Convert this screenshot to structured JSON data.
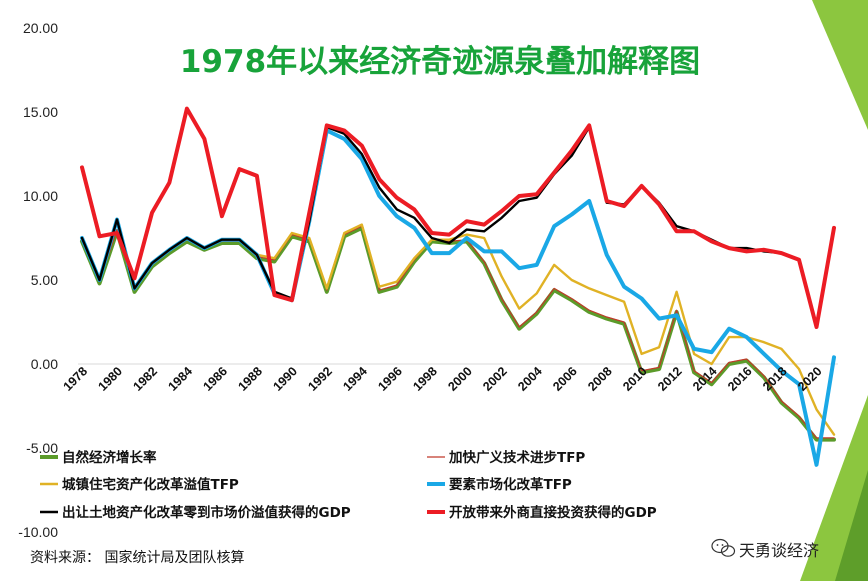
{
  "chart_data": {
    "type": "line",
    "title": "1978年以来经济奇迹源泉叠加解释图",
    "xlabel": "",
    "ylabel": "",
    "ylim": [
      -10,
      20
    ],
    "yticks": [
      "20.00",
      "15.00",
      "10.00",
      "5.00",
      "0.00",
      "-5.00",
      "-10.00"
    ],
    "ytick_values": [
      20,
      15,
      10,
      5,
      0,
      -5,
      -10
    ],
    "x": [
      1978,
      1979,
      1980,
      1981,
      1982,
      1983,
      1984,
      1985,
      1986,
      1987,
      1988,
      1989,
      1990,
      1991,
      1992,
      1993,
      1994,
      1995,
      1996,
      1997,
      1998,
      1999,
      2000,
      2001,
      2002,
      2003,
      2004,
      2005,
      2006,
      2007,
      2008,
      2009,
      2010,
      2011,
      2012,
      2013,
      2014,
      2015,
      2016,
      2017,
      2018,
      2019,
      2020,
      2021
    ],
    "xtick_labels": [
      "1978",
      "1980",
      "1982",
      "1984",
      "1986",
      "1988",
      "1990",
      "1992",
      "1994",
      "1996",
      "1998",
      "2000",
      "2002",
      "2004",
      "2006",
      "2008",
      "2010",
      "2012",
      "2014",
      "2016",
      "2018",
      "2020"
    ],
    "legend_position": "bottom",
    "series": [
      {
        "name": "自然经济增长率",
        "color": "#5b9b2a",
        "width": 4,
        "values": [
          7.3,
          4.8,
          7.9,
          4.3,
          5.8,
          6.6,
          7.3,
          6.8,
          7.2,
          7.2,
          6.3,
          6.1,
          7.6,
          7.3,
          4.3,
          7.6,
          8.1,
          4.3,
          4.6,
          6.1,
          7.3,
          7.2,
          7.3,
          6.0,
          3.8,
          2.1,
          3.0,
          4.4,
          3.8,
          3.1,
          2.7,
          2.4,
          -0.5,
          -0.3,
          3.1,
          -0.5,
          -1.2,
          0.0,
          0.2,
          -0.8,
          -2.3,
          -3.2,
          -4.5,
          -4.5
        ]
      },
      {
        "name": "加快广义技术进步TFP",
        "color": "#c0392b",
        "width": 1.2,
        "values": [
          7.4,
          4.9,
          8.0,
          4.4,
          5.9,
          6.7,
          7.4,
          6.9,
          7.3,
          7.3,
          6.4,
          6.2,
          7.7,
          7.4,
          4.4,
          7.7,
          8.2,
          4.4,
          4.7,
          6.2,
          7.4,
          7.3,
          7.4,
          6.1,
          3.9,
          2.2,
          3.1,
          4.5,
          3.9,
          3.2,
          2.8,
          2.5,
          -0.4,
          -0.2,
          3.2,
          -0.4,
          -1.1,
          0.1,
          0.3,
          -0.7,
          -2.2,
          -3.1,
          -4.4,
          -4.4
        ]
      },
      {
        "name": "城镇住宅资产化改革溢值TFP",
        "color": "#e0b225",
        "width": 2.4,
        "values": [
          7.5,
          5.0,
          8.6,
          4.5,
          6.0,
          6.8,
          7.5,
          6.9,
          7.4,
          7.4,
          6.5,
          6.3,
          7.8,
          7.5,
          4.5,
          7.8,
          8.3,
          4.6,
          4.9,
          6.3,
          7.4,
          7.4,
          7.7,
          7.5,
          5.2,
          3.3,
          4.2,
          5.9,
          5.0,
          4.5,
          4.1,
          3.7,
          0.6,
          1.0,
          4.3,
          0.6,
          0.0,
          1.6,
          1.6,
          1.3,
          0.9,
          -0.3,
          -2.7,
          -4.2
        ]
      },
      {
        "name": "要素市场化改革TFP",
        "color": "#1aa8e6",
        "width": 4,
        "values": [
          7.5,
          5.0,
          8.6,
          4.5,
          6.0,
          6.8,
          7.5,
          6.9,
          7.4,
          7.4,
          6.5,
          4.2,
          3.8,
          8.5,
          13.9,
          13.4,
          12.2,
          10.0,
          8.8,
          8.1,
          6.6,
          6.6,
          7.5,
          6.7,
          6.7,
          5.7,
          5.9,
          8.2,
          8.9,
          9.7,
          6.5,
          4.6,
          3.9,
          2.7,
          2.9,
          0.9,
          0.7,
          2.1,
          1.6,
          0.6,
          -0.4,
          -1.2,
          -6.0,
          0.4
        ]
      },
      {
        "name": "出让土地资产化改革零到市场价溢值获得的GDP",
        "color": "#000000",
        "width": 2.4,
        "values": [
          7.5,
          5.0,
          8.6,
          4.5,
          6.0,
          6.8,
          7.5,
          6.9,
          7.4,
          7.4,
          6.5,
          4.3,
          3.9,
          8.5,
          14.1,
          13.7,
          12.5,
          10.5,
          9.2,
          8.7,
          7.5,
          7.2,
          8.0,
          7.9,
          8.7,
          9.7,
          9.9,
          11.3,
          12.4,
          14.1,
          9.6,
          9.5,
          10.6,
          9.6,
          8.2,
          7.9,
          7.4,
          6.9,
          6.9,
          6.7,
          6.6,
          6.2,
          2.3,
          8.0
        ]
      },
      {
        "name": "开放带来外商直接投资获得的GDP",
        "color": "#ec1c24",
        "width": 4,
        "values": [
          11.7,
          7.6,
          7.8,
          5.1,
          9.0,
          10.8,
          15.2,
          13.4,
          8.8,
          11.6,
          11.2,
          4.1,
          3.8,
          9.0,
          14.2,
          13.9,
          13.0,
          11.0,
          9.9,
          9.2,
          7.8,
          7.7,
          8.5,
          8.3,
          9.1,
          10.0,
          10.1,
          11.4,
          12.7,
          14.2,
          9.7,
          9.4,
          10.6,
          9.5,
          7.9,
          7.9,
          7.3,
          6.9,
          6.7,
          6.8,
          6.6,
          6.2,
          2.2,
          8.1
        ]
      }
    ]
  },
  "source_note": "资料来源：  国家统计局及团队核算",
  "watermark": {
    "text": "天勇谈经济",
    "icon": "wechat-icon"
  },
  "decoration_color": "#8cc63f"
}
